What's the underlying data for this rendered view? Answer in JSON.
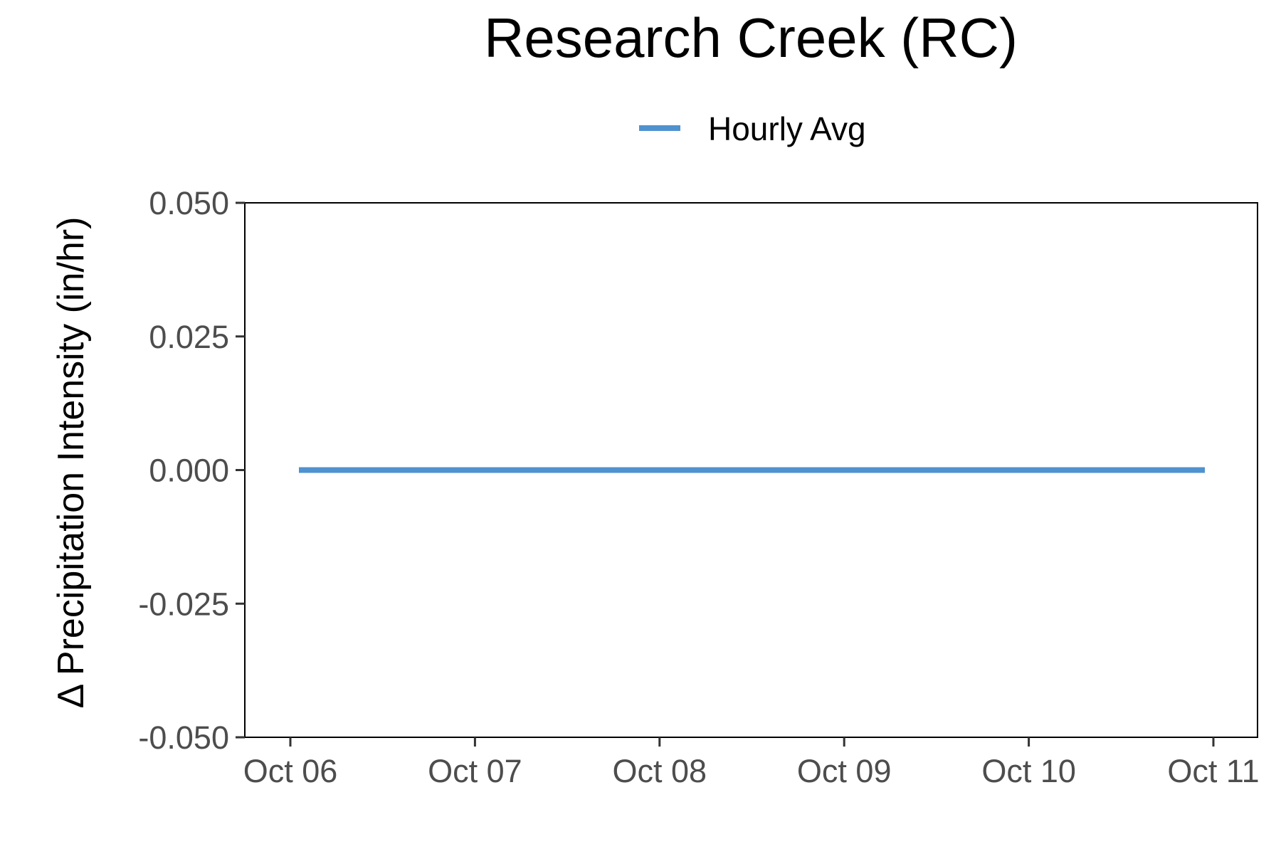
{
  "chart_data": {
    "type": "line",
    "title": "Research Creek (RC)",
    "xlabel": "",
    "ylabel": "Δ Precipitation Intensity (in/hr)",
    "x_tick_labels": [
      "Oct 06",
      "Oct 07",
      "Oct 08",
      "Oct 09",
      "Oct 10",
      "Oct 11"
    ],
    "y_tick_labels": [
      "-0.050",
      "-0.025",
      "0.000",
      "0.025",
      "0.050"
    ],
    "y_ticks": [
      -0.05,
      -0.025,
      0.0,
      0.025,
      0.05
    ],
    "ylim": [
      -0.05,
      0.05
    ],
    "xlim": [
      "Oct 06",
      "Oct 11"
    ],
    "grid": false,
    "legend_position": "top",
    "series": [
      {
        "name": "Hourly Avg",
        "color": "#4f92cf",
        "x": [
          "Oct 06",
          "Oct 11"
        ],
        "y": [
          0.0,
          0.0
        ]
      }
    ]
  }
}
